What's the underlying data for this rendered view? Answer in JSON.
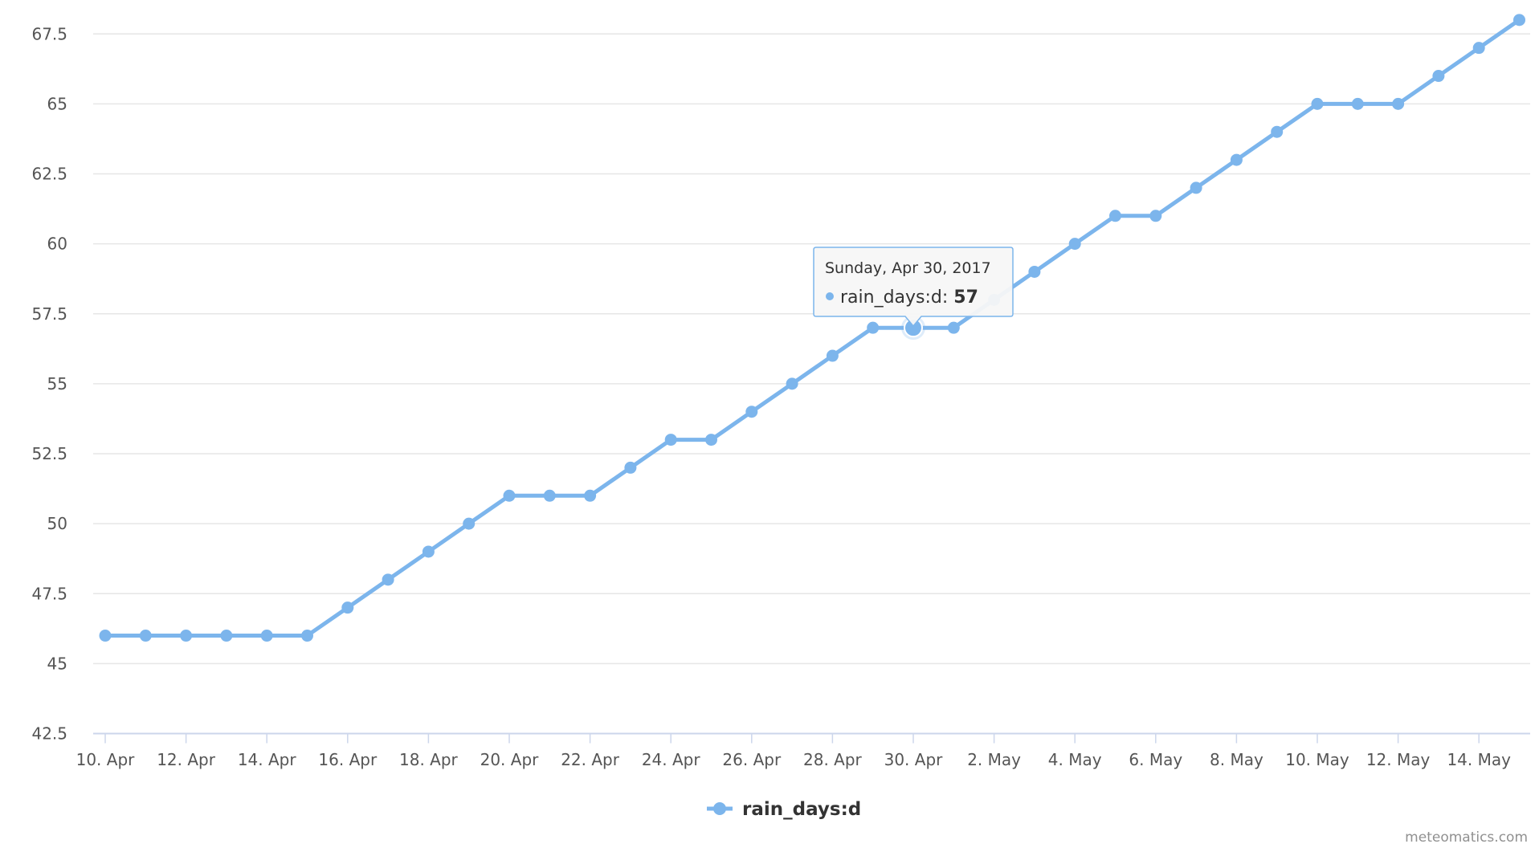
{
  "chart_data": {
    "type": "line",
    "x": [
      "2017-04-10",
      "2017-04-11",
      "2017-04-12",
      "2017-04-13",
      "2017-04-14",
      "2017-04-15",
      "2017-04-16",
      "2017-04-17",
      "2017-04-18",
      "2017-04-19",
      "2017-04-20",
      "2017-04-21",
      "2017-04-22",
      "2017-04-23",
      "2017-04-24",
      "2017-04-25",
      "2017-04-26",
      "2017-04-27",
      "2017-04-28",
      "2017-04-29",
      "2017-04-30",
      "2017-05-01",
      "2017-05-02",
      "2017-05-03",
      "2017-05-04",
      "2017-05-05",
      "2017-05-06",
      "2017-05-07",
      "2017-05-08",
      "2017-05-09",
      "2017-05-10",
      "2017-05-11",
      "2017-05-12",
      "2017-05-13",
      "2017-05-14",
      "2017-05-15"
    ],
    "series": [
      {
        "name": "rain_days:d",
        "color": "#7cb5ec",
        "values": [
          46,
          46,
          46,
          46,
          46,
          46,
          47,
          48,
          49,
          50,
          51,
          51,
          51,
          52,
          53,
          53,
          54,
          55,
          56,
          57,
          57,
          57,
          58,
          59,
          60,
          61,
          61,
          62,
          63,
          64,
          65,
          65,
          65,
          66,
          67,
          68
        ]
      }
    ],
    "x_tick_labels": [
      "10. Apr",
      "12. Apr",
      "14. Apr",
      "16. Apr",
      "18. Apr",
      "20. Apr",
      "22. Apr",
      "24. Apr",
      "26. Apr",
      "28. Apr",
      "30. Apr",
      "2. May",
      "4. May",
      "6. May",
      "8. May",
      "10. May",
      "12. May",
      "14. May"
    ],
    "y_tick_labels": [
      "42.5",
      "45",
      "47.5",
      "50",
      "52.5",
      "55",
      "57.5",
      "60",
      "62.5",
      "65",
      "67.5"
    ],
    "ylim": [
      42.5,
      68.5
    ],
    "grid": true,
    "legend_position": "bottom-center",
    "tooltip": {
      "date": "Sunday, Apr 30, 2017",
      "series": "rain_days:d",
      "value": "57",
      "index": 20
    }
  },
  "credit": "meteomatics.com"
}
